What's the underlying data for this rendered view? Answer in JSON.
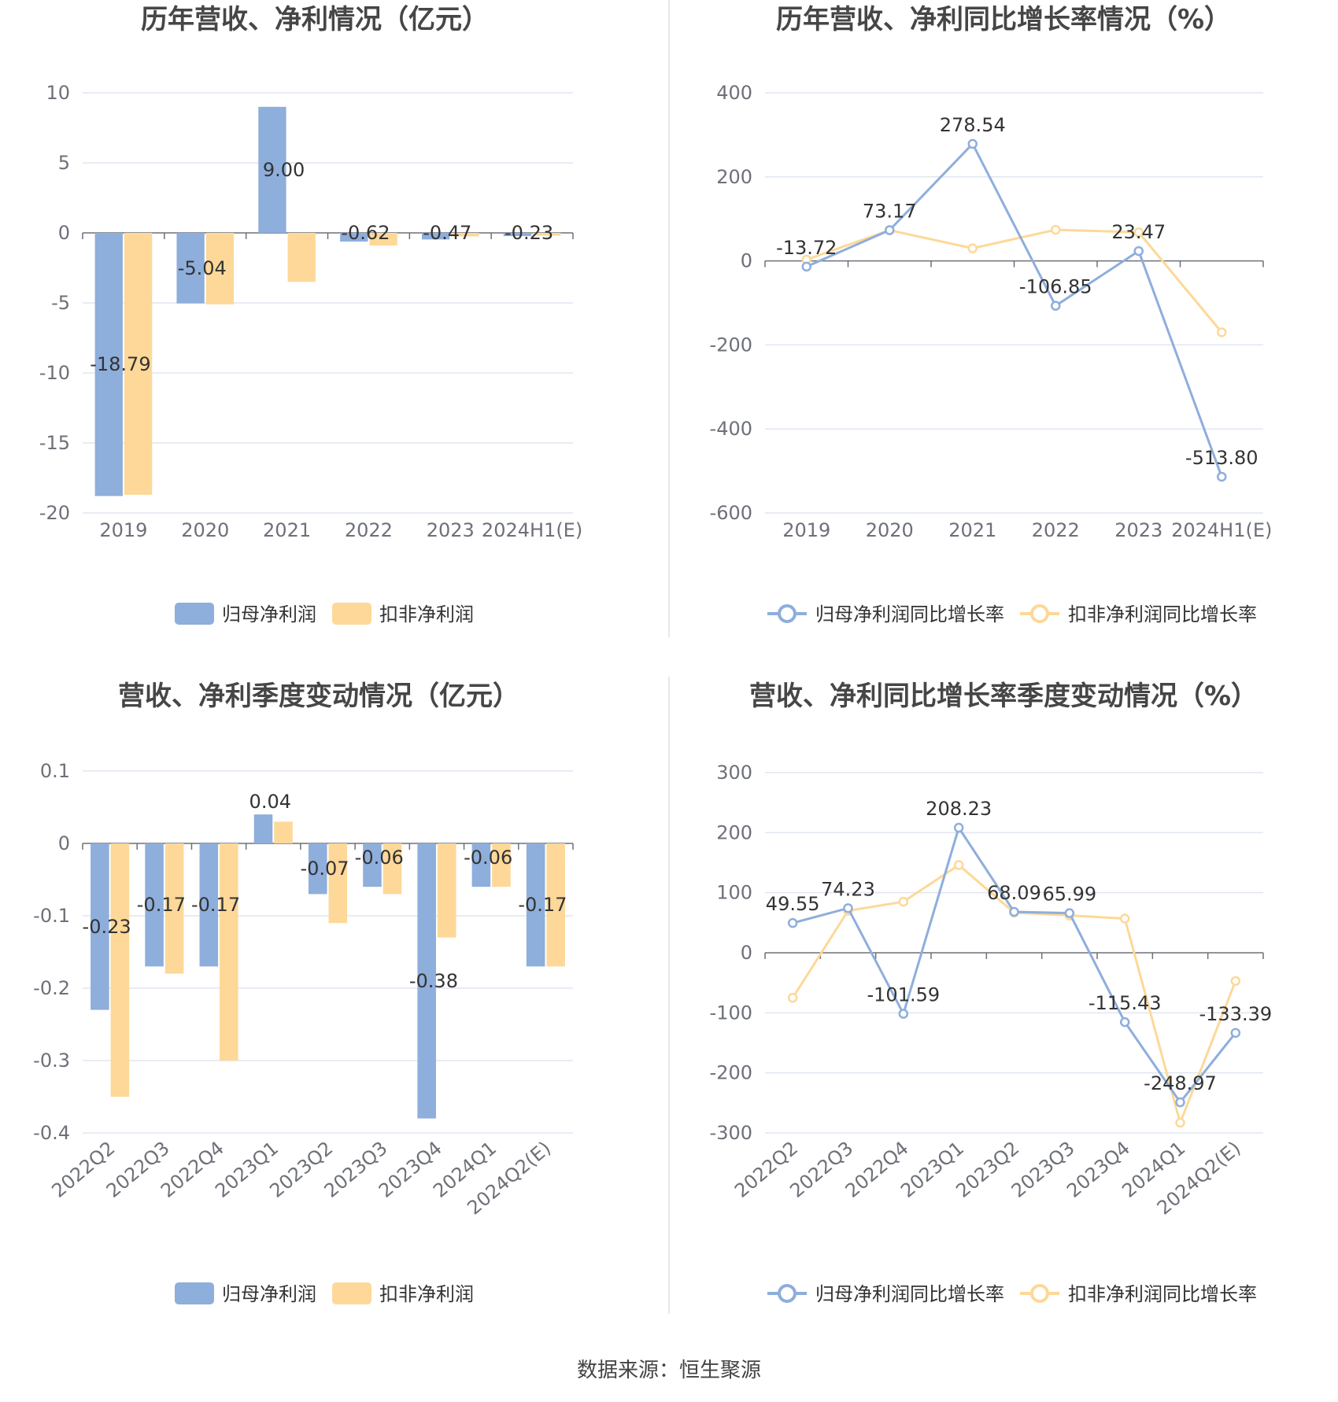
{
  "source": "数据来源：恒生聚源",
  "colors": {
    "blue": "#8eaedc",
    "orange": "#fdd898",
    "grid": "#e0e6f1",
    "axis": "#6e7079"
  },
  "charts": [
    {
      "type": "bar",
      "title": "历年营收、净利情况（亿元）",
      "categories": [
        "2019",
        "2020",
        "2021",
        "2022",
        "2023",
        "2024H1(E)"
      ],
      "y_ticks": [
        "10",
        "5",
        "0",
        "-5",
        "-10",
        "-15",
        "-20"
      ],
      "ylim": [
        -20,
        10
      ],
      "series": [
        {
          "name": "归母净利润",
          "values": [
            -18.79,
            -5.04,
            9.0,
            -0.62,
            -0.47,
            -0.23
          ],
          "labels": [
            "-18.79",
            "-5.04",
            "9.00",
            "-0.62",
            "-0.47",
            "-0.23"
          ]
        },
        {
          "name": "扣非净利润",
          "values": [
            -18.7,
            -5.1,
            -3.5,
            -0.9,
            -0.25,
            -0.2
          ]
        }
      ]
    },
    {
      "type": "line",
      "title": "历年营收、净利同比增长率情况（%）",
      "categories": [
        "2019",
        "2020",
        "2021",
        "2022",
        "2023",
        "2024H1(E)"
      ],
      "y_ticks": [
        "400",
        "200",
        "0",
        "-200",
        "-400",
        "-600"
      ],
      "ylim": [
        -600,
        400
      ],
      "series": [
        {
          "name": "归母净利润同比增长率",
          "values": [
            -13.72,
            73.17,
            278.54,
            -106.85,
            23.47,
            -513.8
          ],
          "labels": [
            "-13.72",
            "73.17",
            "278.54",
            "-106.85",
            "23.47",
            "-513.80"
          ]
        },
        {
          "name": "扣非净利润同比增长率",
          "values": [
            3,
            73,
            30,
            74,
            68,
            -170
          ]
        }
      ]
    },
    {
      "type": "bar",
      "title": "营收、净利季度变动情况（亿元）",
      "categories": [
        "2022Q2",
        "2022Q3",
        "2022Q4",
        "2023Q1",
        "2023Q2",
        "2023Q3",
        "2023Q4",
        "2024Q1",
        "2024Q2(E)"
      ],
      "y_ticks": [
        "0.1",
        "0",
        "-0.1",
        "-0.2",
        "-0.3",
        "-0.4"
      ],
      "ylim": [
        -0.4,
        0.1
      ],
      "series": [
        {
          "name": "归母净利润",
          "values": [
            -0.23,
            -0.17,
            -0.17,
            0.04,
            -0.07,
            -0.06,
            -0.38,
            -0.06,
            -0.17
          ],
          "labels": [
            "-0.23",
            "-0.17",
            "-0.17",
            "0.04",
            "-0.07",
            "-0.06",
            "-0.38",
            "-0.06",
            "-0.17"
          ]
        },
        {
          "name": "扣非净利润",
          "values": [
            -0.35,
            -0.18,
            -0.3,
            0.03,
            -0.11,
            -0.07,
            -0.13,
            -0.06,
            -0.17
          ]
        }
      ]
    },
    {
      "type": "line",
      "title": "营收、净利同比增长率季度变动情况（%）",
      "categories": [
        "2022Q2",
        "2022Q3",
        "2022Q4",
        "2023Q1",
        "2023Q2",
        "2023Q3",
        "2023Q4",
        "2024Q1",
        "2024Q2(E)"
      ],
      "y_ticks": [
        "300",
        "200",
        "100",
        "0",
        "-100",
        "-200",
        "-300"
      ],
      "ylim": [
        -300,
        300
      ],
      "series": [
        {
          "name": "归母净利润同比增长率",
          "values": [
            49.55,
            74.23,
            -101.59,
            208.23,
            68.09,
            65.99,
            -115.43,
            -248.97,
            -133.39
          ],
          "labels": [
            "49.55",
            "74.23",
            "-101.59",
            "208.23",
            "68.09",
            "65.99",
            "-115.43",
            "-248.97",
            "-133.39"
          ]
        },
        {
          "name": "扣非净利润同比增长率",
          "values": [
            -75,
            70,
            85,
            146,
            67,
            62,
            57,
            -283,
            -47
          ]
        }
      ]
    }
  ]
}
